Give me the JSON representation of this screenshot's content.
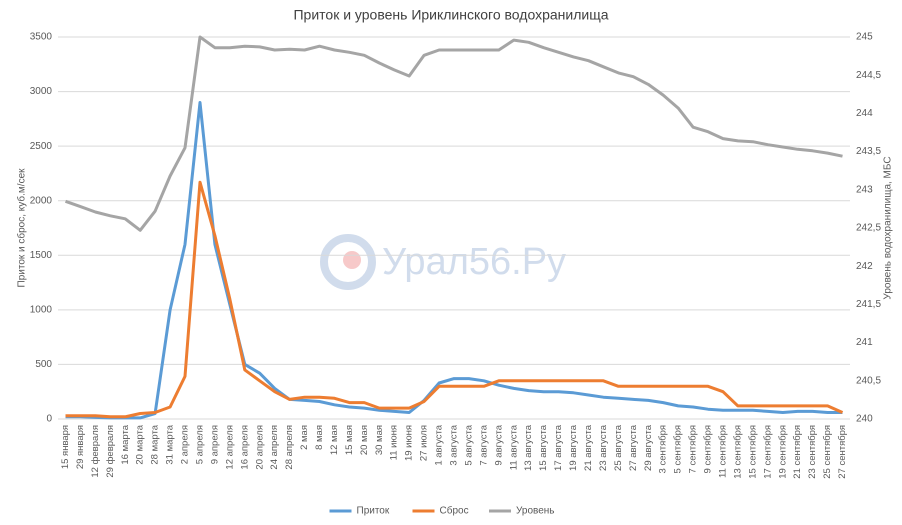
{
  "chart_data": {
    "type": "line",
    "title": "Приток и уровень Ириклинского водохранилища",
    "y_label": "Приток и сброс, куб.м/сек",
    "y2_label": "Уровень водохранилища, МБС",
    "watermark": "Урал56.Ру",
    "categories": [
      "15 января",
      "29 января",
      "12 февраля",
      "29 февраля",
      "16 марта",
      "20 марта",
      "28 марта",
      "31 марта",
      "2 апреля",
      "5 апреля",
      "9 апреля",
      "12 апреля",
      "16 апреля",
      "20 апреля",
      "24 апреля",
      "28 апреля",
      "2 мая",
      "8 мая",
      "12 мая",
      "15 мая",
      "20 мая",
      "30 мая",
      "11 июня",
      "19 июня",
      "27 июля",
      "1 августа",
      "3 августа",
      "5 августа",
      "7 августа",
      "9 августа",
      "11 августа",
      "13 августа",
      "15 августа",
      "17 августа",
      "19 августа",
      "21 августа",
      "23 августа",
      "25 августа",
      "27 августа",
      "29 августа",
      "3 сентября",
      "5 сентября",
      "7 сентября",
      "9 сентября",
      "11 сентября",
      "13 сентября",
      "15 сентября",
      "17 сентября",
      "19 сентября",
      "21 сентября",
      "23 сентября",
      "25 сентября",
      "27 сентября"
    ],
    "series": [
      {
        "name": "Приток",
        "color": "#5b9bd5",
        "values": [
          20,
          20,
          15,
          10,
          10,
          10,
          50,
          1000,
          1600,
          2900,
          1600,
          1050,
          500,
          420,
          280,
          180,
          170,
          160,
          130,
          110,
          100,
          80,
          70,
          60,
          170,
          330,
          370,
          370,
          350,
          310,
          280,
          260,
          250,
          250,
          240,
          220,
          200,
          190,
          180,
          170,
          150,
          120,
          110,
          90,
          80,
          80,
          80,
          70,
          60,
          70,
          70,
          60,
          60
        ]
      },
      {
        "name": "Сброс",
        "color": "#ed7d31",
        "values": [
          30,
          30,
          30,
          20,
          20,
          50,
          60,
          110,
          390,
          2170,
          1680,
          1100,
          450,
          350,
          250,
          180,
          200,
          200,
          190,
          150,
          150,
          100,
          100,
          100,
          160,
          300,
          300,
          300,
          300,
          350,
          350,
          350,
          350,
          350,
          350,
          350,
          350,
          300,
          300,
          300,
          300,
          300,
          300,
          300,
          250,
          120,
          120,
          120,
          120,
          120,
          120,
          120,
          60
        ]
      },
      {
        "name": "Уровень",
        "color": "#a5a5a5",
        "axis": "y2",
        "values": [
          242.85,
          242.78,
          242.71,
          242.66,
          242.62,
          242.47,
          242.72,
          243.18,
          243.55,
          245.0,
          244.86,
          244.86,
          244.88,
          244.87,
          244.83,
          244.84,
          244.83,
          244.88,
          244.83,
          244.8,
          244.76,
          244.66,
          244.57,
          244.49,
          244.76,
          244.83,
          244.83,
          244.83,
          244.83,
          244.83,
          244.96,
          244.93,
          244.86,
          244.8,
          244.74,
          244.69,
          244.61,
          244.53,
          244.48,
          244.38,
          244.24,
          244.07,
          243.82,
          243.76,
          243.67,
          243.64,
          243.63,
          243.59,
          243.56,
          243.53,
          243.51,
          243.48,
          243.44
        ]
      }
    ],
    "ylim": [
      0,
      3500
    ],
    "yticks": [
      0,
      500,
      1000,
      1500,
      2000,
      2500,
      3000,
      3500
    ],
    "y2lim": [
      240,
      245
    ],
    "y2ticks": [
      240,
      {
        "value": 240.5,
        "label": "240,5"
      },
      241,
      {
        "value": 241.5,
        "label": "241,5"
      },
      242,
      {
        "value": 242.5,
        "label": "242,5"
      },
      243,
      {
        "value": 243.5,
        "label": "243,5"
      },
      244,
      {
        "value": 244.5,
        "label": "244,5"
      },
      245
    ],
    "grid": true,
    "legend": "bottom"
  }
}
